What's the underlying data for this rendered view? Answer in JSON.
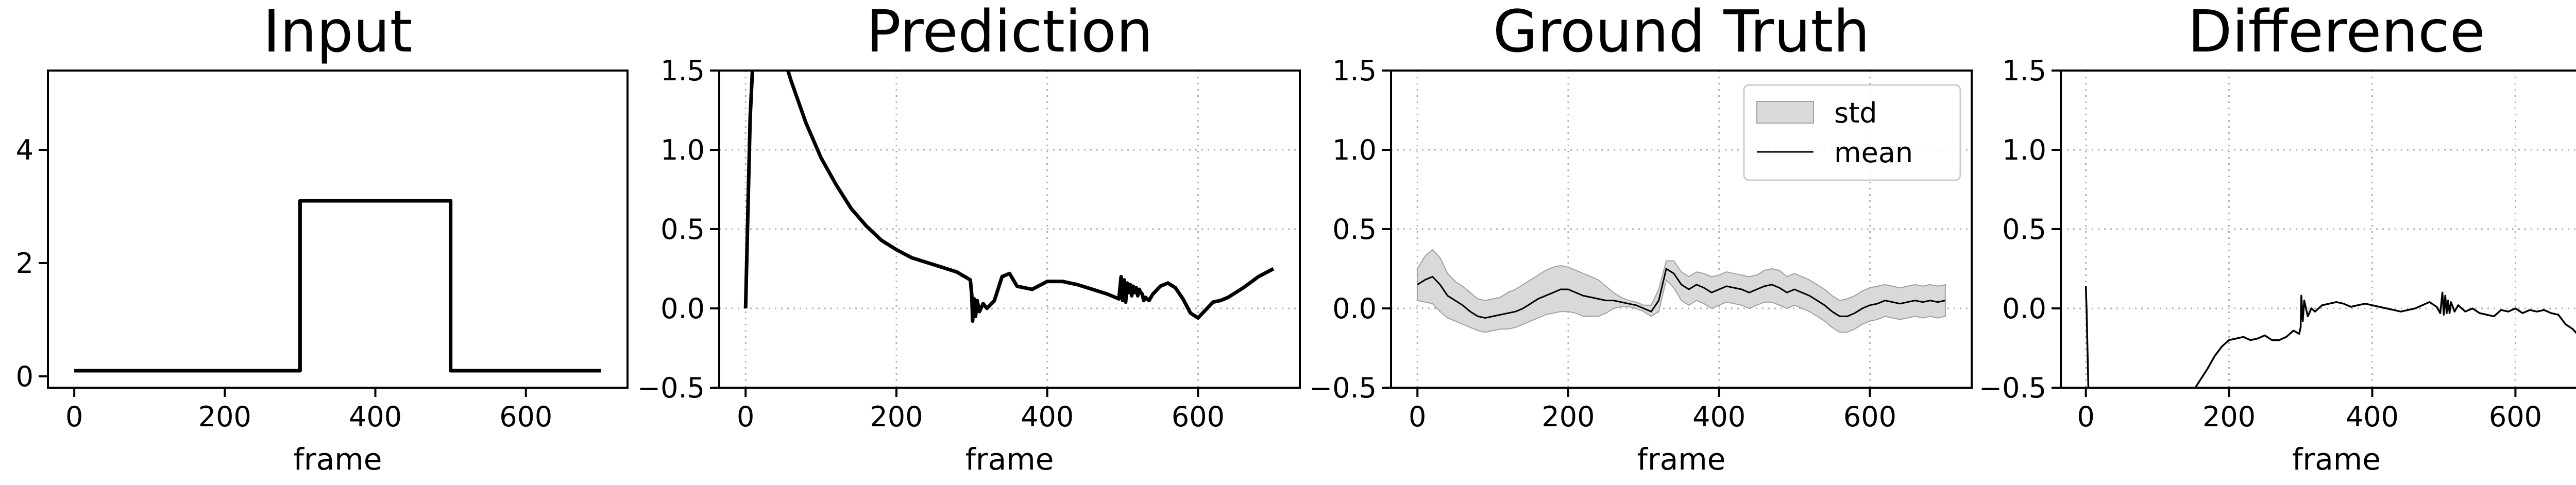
{
  "chart_data": [
    {
      "type": "line",
      "title": "Input",
      "xlabel": "frame",
      "ylabel": "",
      "xlim": [
        -35,
        735
      ],
      "ylim": [
        -0.2,
        5.4
      ],
      "xticks": [
        0,
        200,
        400,
        600
      ],
      "xtick_labels": [
        "0",
        "200",
        "400",
        "600"
      ],
      "yticks": [
        0,
        2,
        4
      ],
      "ytick_labels": [
        "0",
        "2",
        "4"
      ],
      "grid": false,
      "series": [
        {
          "color": "#000000",
          "x": [
            0,
            300,
            300,
            500,
            500,
            700
          ],
          "y": [
            0.1,
            0.1,
            3.1,
            3.1,
            0.1,
            0.1
          ]
        }
      ]
    },
    {
      "type": "line",
      "title": "Prediction",
      "xlabel": "frame",
      "ylabel": "",
      "xlim": [
        -35,
        735
      ],
      "ylim": [
        -0.5,
        1.5
      ],
      "xticks": [
        0,
        200,
        400,
        600
      ],
      "xtick_labels": [
        "0",
        "200",
        "400",
        "600"
      ],
      "yticks": [
        -0.5,
        0.0,
        0.5,
        1.0,
        1.5
      ],
      "ytick_labels": [
        "−0.5",
        "0.0",
        "0.5",
        "1.0",
        "1.5"
      ],
      "grid": true,
      "series": [
        {
          "color": "#000000",
          "x": [
            0,
            3,
            6,
            10,
            50,
            60,
            80,
            100,
            120,
            140,
            160,
            180,
            200,
            220,
            240,
            260,
            280,
            298,
            300,
            301,
            303,
            305,
            307,
            310,
            315,
            320,
            330,
            340,
            350,
            360,
            380,
            400,
            420,
            440,
            460,
            480,
            495,
            498,
            500,
            502,
            504,
            506,
            508,
            510,
            512,
            514,
            516,
            518,
            520,
            522,
            524,
            526,
            528,
            530,
            535,
            540,
            550,
            560,
            570,
            580,
            590,
            600,
            610,
            620,
            630,
            640,
            660,
            680,
            700
          ],
          "y": [
            0.0,
            0.6,
            1.2,
            1.6,
            1.6,
            1.44,
            1.17,
            0.95,
            0.78,
            0.63,
            0.52,
            0.43,
            0.37,
            0.32,
            0.29,
            0.26,
            0.23,
            0.18,
            0.08,
            -0.08,
            0.06,
            -0.05,
            0.05,
            -0.02,
            0.03,
            0.0,
            0.05,
            0.2,
            0.22,
            0.14,
            0.12,
            0.17,
            0.17,
            0.15,
            0.12,
            0.09,
            0.06,
            0.2,
            0.05,
            0.18,
            0.04,
            0.16,
            0.1,
            0.15,
            0.08,
            0.14,
            0.1,
            0.13,
            0.08,
            0.12,
            0.1,
            0.09,
            0.05,
            0.07,
            0.05,
            0.09,
            0.14,
            0.16,
            0.13,
            0.06,
            -0.03,
            -0.06,
            -0.01,
            0.04,
            0.05,
            0.07,
            0.13,
            0.2,
            0.25
          ]
        }
      ]
    },
    {
      "type": "area",
      "title": "Ground Truth",
      "xlabel": "frame",
      "ylabel": "",
      "xlim": [
        -35,
        735
      ],
      "ylim": [
        -0.5,
        1.5
      ],
      "xticks": [
        0,
        200,
        400,
        600
      ],
      "xtick_labels": [
        "0",
        "200",
        "400",
        "600"
      ],
      "yticks": [
        -0.5,
        0.0,
        0.5,
        1.0,
        1.5
      ],
      "ytick_labels": [
        "−0.5",
        "0.0",
        "0.5",
        "1.0",
        "1.5"
      ],
      "grid": true,
      "legend": {
        "position": "top-right",
        "std_label": "std",
        "mean_label": "mean",
        "std_color": "#d9d9d9",
        "mean_color": "#000000"
      },
      "x": [
        0,
        10,
        20,
        30,
        40,
        50,
        60,
        70,
        80,
        90,
        100,
        110,
        120,
        130,
        140,
        150,
        160,
        170,
        180,
        190,
        200,
        210,
        220,
        230,
        240,
        250,
        260,
        270,
        280,
        290,
        300,
        310,
        320,
        330,
        340,
        350,
        360,
        370,
        380,
        390,
        400,
        410,
        420,
        430,
        440,
        450,
        460,
        470,
        480,
        490,
        500,
        510,
        520,
        530,
        540,
        550,
        560,
        570,
        580,
        590,
        600,
        610,
        620,
        630,
        640,
        650,
        660,
        670,
        680,
        690,
        700
      ],
      "mean": [
        0.15,
        0.18,
        0.2,
        0.15,
        0.08,
        0.05,
        0.02,
        -0.02,
        -0.05,
        -0.06,
        -0.05,
        -0.04,
        -0.03,
        -0.02,
        0.0,
        0.03,
        0.06,
        0.08,
        0.1,
        0.12,
        0.12,
        0.1,
        0.08,
        0.07,
        0.06,
        0.05,
        0.05,
        0.04,
        0.03,
        0.02,
        0.0,
        -0.02,
        0.05,
        0.25,
        0.22,
        0.15,
        0.12,
        0.15,
        0.13,
        0.1,
        0.12,
        0.14,
        0.13,
        0.12,
        0.1,
        0.12,
        0.14,
        0.15,
        0.13,
        0.1,
        0.12,
        0.1,
        0.08,
        0.05,
        0.02,
        -0.02,
        -0.05,
        -0.05,
        -0.03,
        0.0,
        0.02,
        0.03,
        0.05,
        0.04,
        0.03,
        0.04,
        0.05,
        0.04,
        0.05,
        0.04,
        0.05
      ],
      "std_upper": [
        0.25,
        0.33,
        0.37,
        0.32,
        0.22,
        0.17,
        0.14,
        0.1,
        0.06,
        0.05,
        0.06,
        0.07,
        0.1,
        0.12,
        0.15,
        0.18,
        0.21,
        0.24,
        0.26,
        0.27,
        0.26,
        0.24,
        0.22,
        0.2,
        0.18,
        0.14,
        0.1,
        0.07,
        0.05,
        0.04,
        0.02,
        0.02,
        0.12,
        0.3,
        0.3,
        0.23,
        0.2,
        0.23,
        0.22,
        0.2,
        0.21,
        0.23,
        0.22,
        0.21,
        0.2,
        0.21,
        0.24,
        0.25,
        0.24,
        0.2,
        0.22,
        0.2,
        0.18,
        0.15,
        0.12,
        0.08,
        0.05,
        0.06,
        0.08,
        0.11,
        0.13,
        0.14,
        0.15,
        0.14,
        0.13,
        0.14,
        0.15,
        0.14,
        0.15,
        0.14,
        0.15
      ],
      "std_lower": [
        0.05,
        0.04,
        0.03,
        -0.02,
        -0.06,
        -0.08,
        -0.1,
        -0.12,
        -0.14,
        -0.15,
        -0.14,
        -0.13,
        -0.13,
        -0.12,
        -0.1,
        -0.08,
        -0.06,
        -0.04,
        -0.03,
        -0.02,
        -0.02,
        -0.03,
        -0.05,
        -0.05,
        -0.05,
        -0.03,
        0.0,
        0.01,
        0.01,
        0.0,
        -0.02,
        -0.05,
        -0.02,
        0.18,
        0.13,
        0.05,
        0.02,
        0.05,
        0.03,
        0.0,
        0.02,
        0.04,
        0.03,
        0.02,
        0.0,
        0.02,
        0.04,
        0.04,
        0.02,
        0.0,
        0.02,
        0.0,
        -0.02,
        -0.05,
        -0.08,
        -0.12,
        -0.15,
        -0.15,
        -0.13,
        -0.1,
        -0.08,
        -0.07,
        -0.05,
        -0.06,
        -0.07,
        -0.06,
        -0.05,
        -0.06,
        -0.05,
        -0.06,
        -0.05
      ]
    },
    {
      "type": "line",
      "title": "Difference",
      "xlabel": "frame",
      "ylabel": "",
      "xlim": [
        -35,
        735
      ],
      "ylim": [
        -0.5,
        1.5
      ],
      "xticks": [
        0,
        200,
        400,
        600
      ],
      "xtick_labels": [
        "0",
        "200",
        "400",
        "600"
      ],
      "yticks": [
        -0.5,
        0.0,
        0.5,
        1.0,
        1.5
      ],
      "ytick_labels": [
        "−0.5",
        "0.0",
        "0.5",
        "1.0",
        "1.5"
      ],
      "grid": true,
      "series": [
        {
          "color": "#000000",
          "segments": [
            {
              "x": [
                0,
                1,
                2,
                3,
                4
              ],
              "y": [
                0.14,
                0.0,
                -0.2,
                -0.4,
                -0.6
              ]
            },
            {
              "x": [
                150,
                160,
                170,
                180,
                190,
                200,
                210,
                220,
                230,
                240,
                250,
                260,
                270,
                280,
                290,
                298,
                300,
                301,
                303,
                305,
                310,
                315,
                320,
                330,
                340,
                350,
                360,
                370,
                380,
                390,
                400,
                410,
                420,
                430,
                440,
                450,
                460,
                470,
                480,
                490,
                495,
                498,
                500,
                502,
                504,
                506,
                508,
                510,
                515,
                520,
                530,
                540,
                550,
                560,
                570,
                580,
                590,
                600,
                610,
                620,
                630,
                640,
                650,
                660,
                670,
                680,
                690,
                700
              ],
              "y": [
                -0.52,
                -0.45,
                -0.38,
                -0.3,
                -0.24,
                -0.2,
                -0.19,
                -0.18,
                -0.2,
                -0.19,
                -0.17,
                -0.2,
                -0.2,
                -0.18,
                -0.14,
                -0.16,
                -0.12,
                0.08,
                -0.08,
                0.05,
                -0.05,
                0.0,
                -0.02,
                0.02,
                0.03,
                0.04,
                0.03,
                0.01,
                0.02,
                0.03,
                0.02,
                0.01,
                0.0,
                -0.01,
                -0.02,
                -0.01,
                0.0,
                0.02,
                0.04,
                0.01,
                -0.03,
                0.1,
                -0.04,
                0.08,
                -0.03,
                0.05,
                -0.03,
                0.04,
                -0.02,
                0.02,
                -0.02,
                0.0,
                -0.03,
                -0.04,
                -0.05,
                -0.01,
                -0.02,
                0.0,
                -0.03,
                -0.01,
                -0.02,
                -0.01,
                -0.03,
                -0.04,
                -0.1,
                -0.13,
                -0.18,
                -0.17
              ]
            }
          ]
        }
      ]
    }
  ]
}
